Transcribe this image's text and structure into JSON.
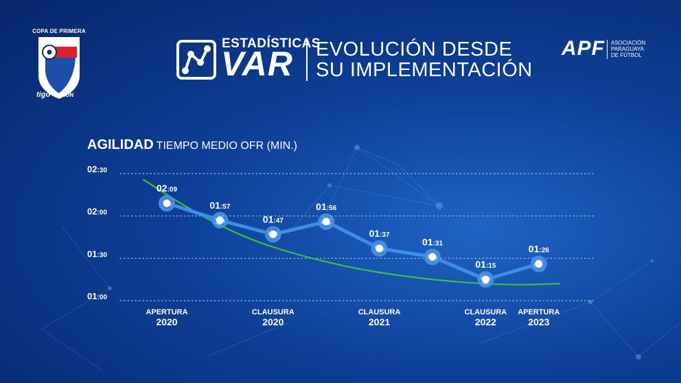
{
  "league": {
    "title": "COPA DE PRIMERA",
    "sponsor_a": "tigo",
    "sponsor_b": "VISION"
  },
  "header": {
    "top_line": "ESTADÍSTICAS",
    "big": "VAR",
    "subtitle_line1": "EVOLUCIÓN DESDE",
    "subtitle_line2": "SU IMPLEMENTACIÓN"
  },
  "apf": {
    "mark": "APF",
    "lines": [
      "ASOCIACIÓN",
      "PARAGUAYA",
      "DE FÚTBOL"
    ]
  },
  "colors": {
    "line": "#3d8ee4",
    "trend": "#3fbf3f",
    "grid": "#9fc3ee"
  },
  "chart_data": {
    "type": "line",
    "title": "AGILIDAD",
    "subtitle": "TIEMPO MEDIO OFR (MIN.)",
    "y_unit": "seconds",
    "ylim": [
      60,
      150
    ],
    "y_ticks": [
      {
        "value": 150,
        "major": "02",
        "minor": ":30"
      },
      {
        "value": 120,
        "major": "02",
        "minor": ":00"
      },
      {
        "value": 90,
        "major": "01",
        "minor": ":30"
      },
      {
        "value": 60,
        "major": "01",
        "minor": ":00"
      }
    ],
    "series": [
      {
        "name": "Tiempo medio OFR",
        "points": [
          {
            "x": 0,
            "value": 129,
            "major": "02",
            "minor": ":09"
          },
          {
            "x": 1,
            "value": 117,
            "major": "01",
            "minor": ":57"
          },
          {
            "x": 2,
            "value": 107,
            "major": "01",
            "minor": ":47"
          },
          {
            "x": 3,
            "value": 116,
            "major": "01",
            "minor": ":56"
          },
          {
            "x": 4,
            "value": 97,
            "major": "01",
            "minor": ":37"
          },
          {
            "x": 5,
            "value": 91,
            "major": "01",
            "minor": ":31"
          },
          {
            "x": 6,
            "value": 75,
            "major": "01",
            "minor": ":15"
          },
          {
            "x": 7,
            "value": 86,
            "major": "01",
            "minor": ":26"
          }
        ]
      }
    ],
    "trend": [
      {
        "x": -0.45,
        "value": 146
      },
      {
        "x": 0.5,
        "value": 123
      },
      {
        "x": 1.5,
        "value": 104
      },
      {
        "x": 2.5,
        "value": 92
      },
      {
        "x": 3.5,
        "value": 83
      },
      {
        "x": 4.5,
        "value": 77
      },
      {
        "x": 5.5,
        "value": 73
      },
      {
        "x": 6.5,
        "value": 71
      },
      {
        "x": 7.4,
        "value": 72
      }
    ],
    "x_labels": [
      {
        "x": 0,
        "top": "APERTURA",
        "bottom": "2020"
      },
      {
        "x": 2,
        "top": "CLAUSURA",
        "bottom": "2020"
      },
      {
        "x": 4,
        "top": "CLAUSURA",
        "bottom": "2021"
      },
      {
        "x": 6,
        "top": "CLAUSURA",
        "bottom": "2022"
      },
      {
        "x": 7,
        "top": "APERTURA",
        "bottom": "2023"
      }
    ]
  }
}
